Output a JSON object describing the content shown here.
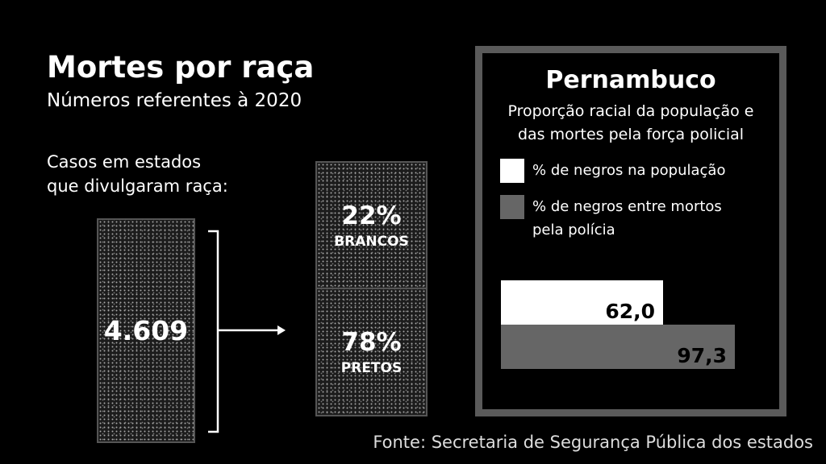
{
  "header": {
    "title": "Mortes por raça",
    "subtitle": "Números referentes à 2020"
  },
  "cases": {
    "label_line1": "Casos em estados",
    "label_line2": "que divulgaram raça:",
    "total": "4.609"
  },
  "breakdown": [
    {
      "pct": "22%",
      "label": "BRANCOS"
    },
    {
      "pct": "78%",
      "label": "PRETOS"
    }
  ],
  "source": "Fonte: Secretaria de Segurança Pública dos estados",
  "chart_data": {
    "type": "bar",
    "orientation": "horizontal",
    "title": "Pernambuco",
    "subtitle_line1": "Proporção racial da população e",
    "subtitle_line2": "das mortes pela força policial",
    "legend_placement": "top",
    "series": [
      {
        "name": "% de negros na população",
        "legend_line2": "",
        "value": 62.0,
        "label": "62,0",
        "color": "#ffffff"
      },
      {
        "name": "% de negros entre mortos",
        "legend_line2": "pela polícia",
        "value": 97.3,
        "label": "97,3",
        "color": "#666666"
      }
    ]
  }
}
